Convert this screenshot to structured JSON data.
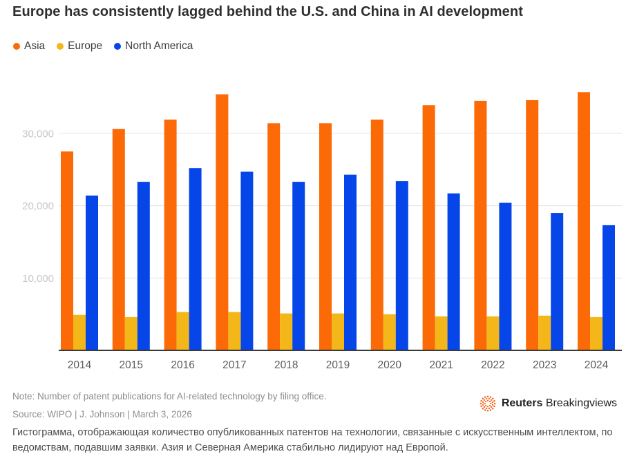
{
  "header": {
    "title": "Europe has consistently lagged behind the U.S. and China in AI development"
  },
  "legend": {
    "items": [
      {
        "label": "Asia",
        "color": "#fb6a06"
      },
      {
        "label": "Europe",
        "color": "#f3b71a"
      },
      {
        "label": "North America",
        "color": "#0646e8"
      }
    ]
  },
  "chart_data": {
    "type": "bar",
    "title": "Europe has consistently lagged behind the U.S. and China in AI development",
    "categories": [
      "2014",
      "2015",
      "2016",
      "2017",
      "2018",
      "2019",
      "2020",
      "2021",
      "2022",
      "2023",
      "2024"
    ],
    "series": [
      {
        "name": "Asia",
        "color": "#fb6a06",
        "values": [
          27500,
          30600,
          31900,
          35400,
          31400,
          31400,
          31900,
          33900,
          34500,
          34600,
          35700
        ]
      },
      {
        "name": "Europe",
        "color": "#f3b71a",
        "values": [
          4900,
          4600,
          5300,
          5300,
          5100,
          5100,
          5000,
          4700,
          4700,
          4800,
          4600
        ]
      },
      {
        "name": "North America",
        "color": "#0646e8",
        "values": [
          21400,
          23300,
          25200,
          24700,
          23300,
          24300,
          23400,
          21700,
          20400,
          19000,
          17300
        ]
      }
    ],
    "xlabel": "",
    "ylabel": "",
    "ylim": [
      0,
      36500
    ],
    "yticks": [
      10000,
      20000,
      30000
    ],
    "ytick_labels": [
      "10,000",
      "20,000",
      "30,000"
    ],
    "grid": true,
    "legend_position": "top-left"
  },
  "footer": {
    "note": "Note: Number of patent publications for AI-related technology by filing office.",
    "source": "Source: WIPO | J. Johnson | March 3, 2026",
    "caption_ru": "Гистограмма, отображающая количество опубликованных патентов на технологии, связанные с искусственным интеллектом, по ведомствам, подавшим заявки. Азия и Северная Америка стабильно лидируют над Европой.",
    "brand": {
      "bold": "Reuters",
      "regular": "Breakingviews",
      "logo_color": "#f5641e"
    }
  }
}
